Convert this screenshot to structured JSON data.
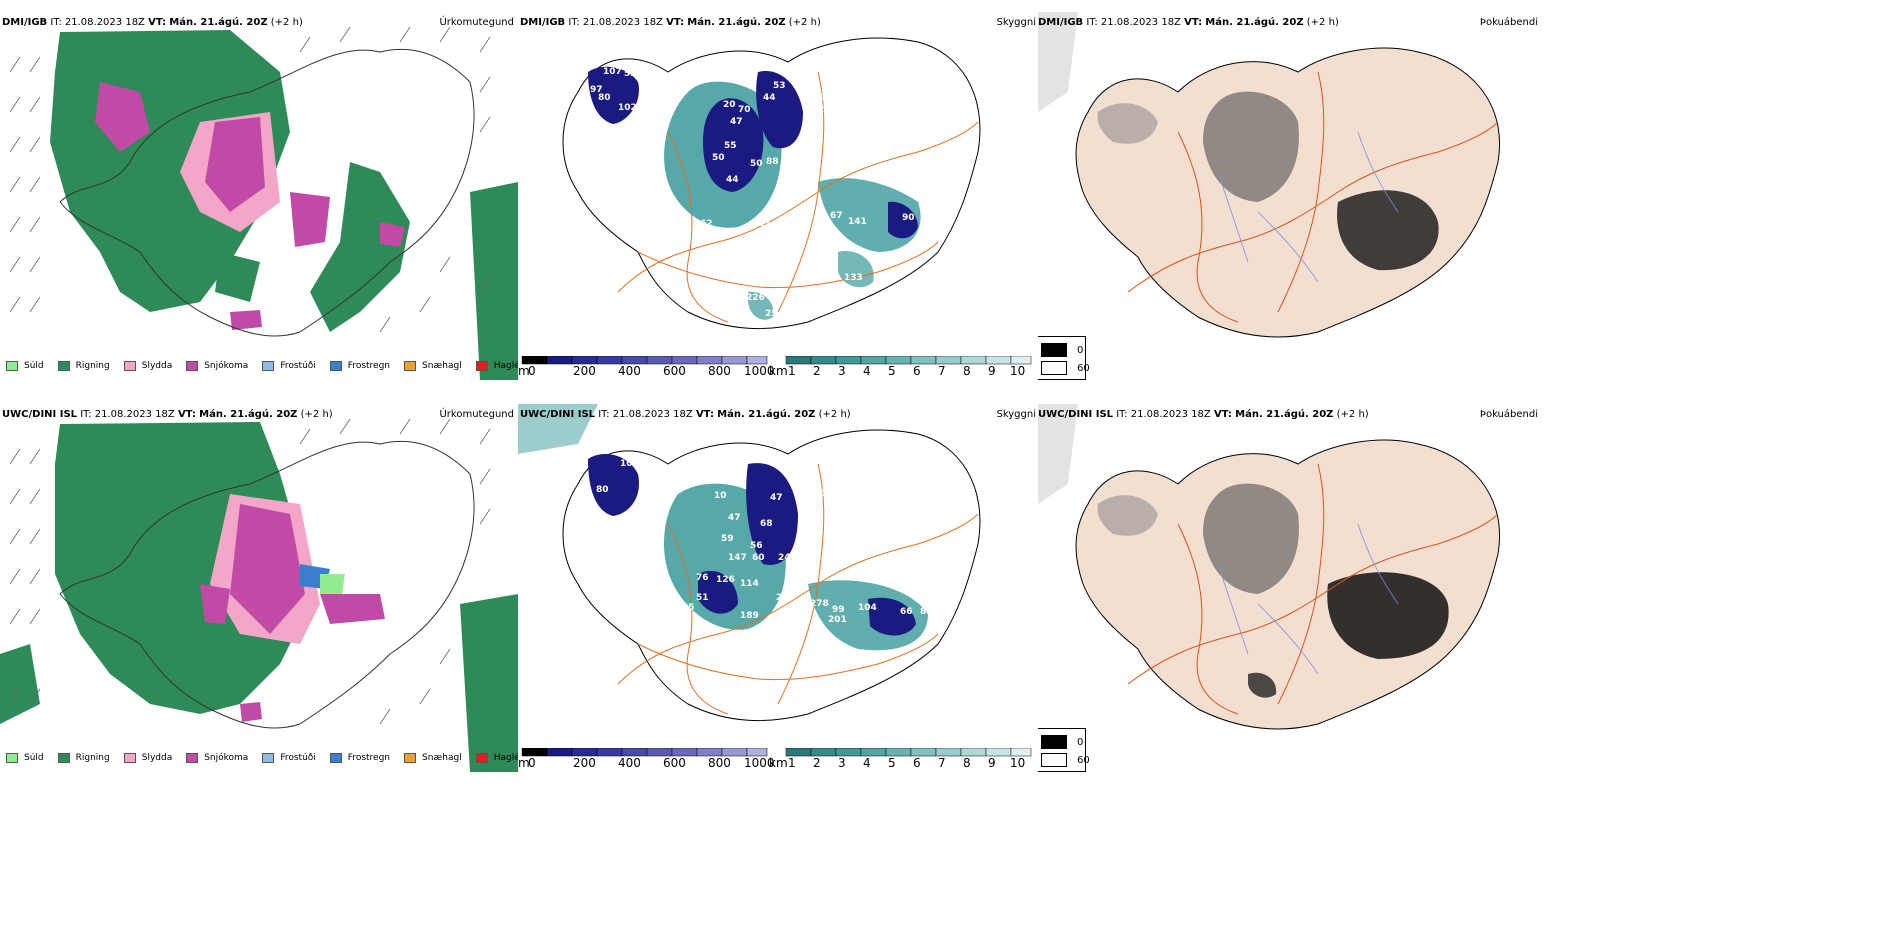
{
  "colors": {
    "rain": "#2e8b57",
    "drizzle": "#90ee90",
    "sleet": "#f4a6c8",
    "snow": "#c04aa6",
    "freezing_drizzle": "#8cbbe8",
    "freezing_rain": "#3a7fcf",
    "snow_pellets": "#f0a030",
    "hail": "#e02020",
    "cloud_low": "#1a1a80",
    "cloud_high": "#3a9a9a",
    "roads": "#e07020",
    "land": "#f3dfd0",
    "fog_dark": "#303030"
  },
  "rows": [
    {
      "precip": {
        "model": "DMI/IGB",
        "it_label": "IT:",
        "it_value": "21.08.2023 18Z",
        "vt_label": "VT:",
        "vt_value": "Mán. 21.ágú. 20Z",
        "lead": "(+2 h)",
        "product": "Úrkomutegund"
      },
      "cloud": {
        "model": "DMI/IGB",
        "it_label": "IT:",
        "it_value": "21.08.2023 18Z",
        "vt_label": "VT:",
        "vt_value": "Mán. 21.ágú. 20Z",
        "lead": "(+2 h)",
        "product": "Skyggni",
        "labels": [
          "107",
          "53",
          "97",
          "80",
          "102",
          "44",
          "53",
          "20",
          "70",
          "47",
          "10",
          "20",
          "55",
          "50",
          "50",
          "88",
          "47",
          "44",
          "62",
          "13",
          "90",
          "67",
          "141",
          "69",
          "133",
          "226",
          "25"
        ]
      },
      "fog": {
        "model": "DMI/IGB",
        "it_label": "IT:",
        "it_value": "21.08.2023 18Z",
        "vt_label": "VT:",
        "vt_value": "Mán. 21.ágú. 20Z",
        "lead": "(+2 h)",
        "product": "Þokuábendi"
      }
    },
    {
      "precip": {
        "model": "UWC/DINI ISL",
        "it_label": "IT:",
        "it_value": "21.08.2023 18Z",
        "vt_label": "VT:",
        "vt_value": "Mán. 21.ágú. 20Z",
        "lead": "(+2 h)",
        "product": "Úrkomutegund"
      },
      "cloud": {
        "model": "UWC/DINI ISL",
        "it_label": "IT:",
        "it_value": "21.08.2023 18Z",
        "vt_label": "VT:",
        "vt_value": "Mán. 21.ágú. 20Z",
        "lead": "(+2 h)",
        "product": "Skyggni",
        "labels": [
          "10",
          "47",
          "80",
          "188",
          "10",
          "47",
          "10",
          "47",
          "59",
          "68",
          "147",
          "56",
          "60",
          "24",
          "76",
          "126",
          "114",
          "51",
          "55",
          "60",
          "189",
          "285",
          "278",
          "99",
          "201",
          "104",
          "66",
          "81",
          "20",
          "13"
        ]
      },
      "fog": {
        "model": "UWC/DINI ISL",
        "it_label": "IT:",
        "it_value": "21.08.2023 18Z",
        "vt_label": "VT:",
        "vt_value": "Mán. 21.ágú. 20Z",
        "lead": "(+2 h)",
        "product": "Þokuábendi"
      }
    }
  ],
  "precip_legend": [
    "Súld",
    "Rigning",
    "Slydda",
    "Snjókoma",
    "Frostúði",
    "Frostregn",
    "Snæhagl",
    "Haglél"
  ],
  "cloud_scale": {
    "m_unit": "m",
    "m_ticks": [
      "0",
      "200",
      "400",
      "600",
      "800",
      "1000"
    ],
    "km_unit": "km",
    "km_ticks": [
      "1",
      "2",
      "3",
      "4",
      "5",
      "6",
      "7",
      "8",
      "9",
      "10"
    ]
  },
  "fog_scale": {
    "top": "0",
    "bottom": "60"
  }
}
